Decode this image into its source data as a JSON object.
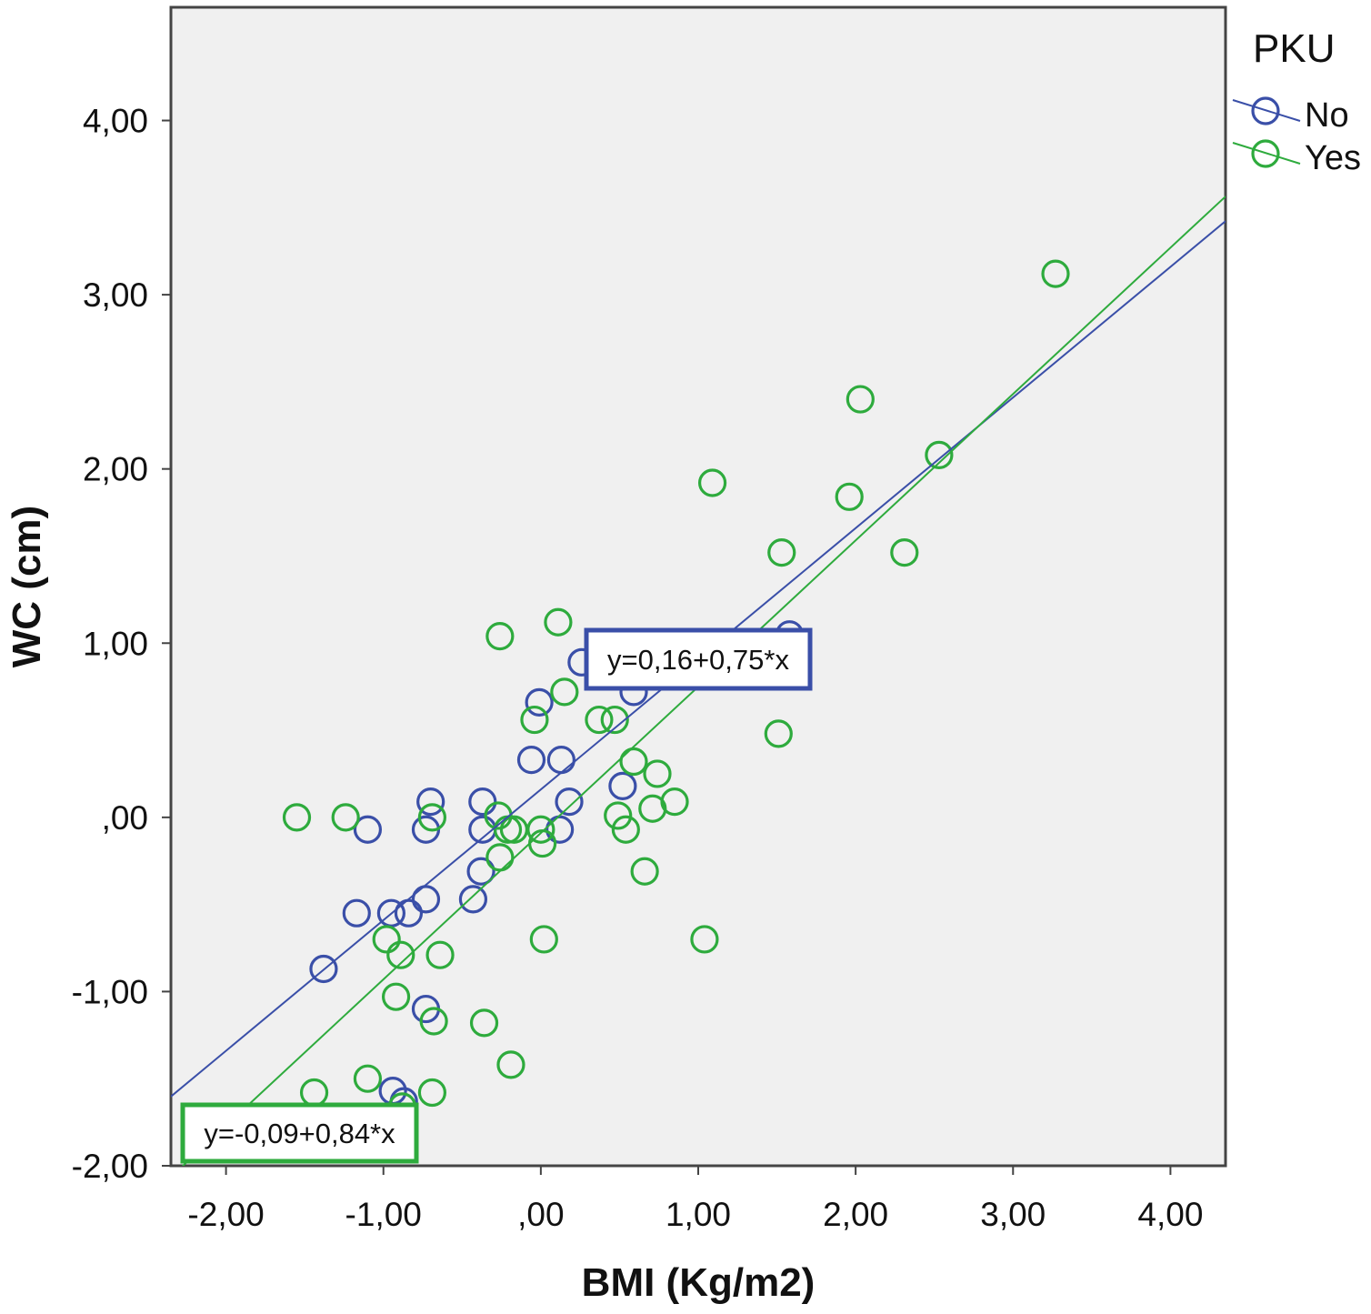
{
  "chart_data": {
    "type": "scatter",
    "title": "",
    "xlabel": "BMI (Kg/m2)",
    "ylabel": "WC (cm)",
    "xlim": [
      -2.35,
      4.35
    ],
    "ylim": [
      -2.0,
      4.65
    ],
    "xticks": [
      -2,
      -1,
      0,
      1,
      2,
      3,
      4
    ],
    "xtick_labels": [
      "-2,00",
      "-1,00",
      ",00",
      "1,00",
      "2,00",
      "3,00",
      "4,00"
    ],
    "yticks": [
      -2,
      -1,
      0,
      1,
      2,
      3,
      4
    ],
    "ytick_labels": [
      "-2,00",
      "-1,00",
      ",00",
      "1,00",
      "2,00",
      "3,00",
      "4,00"
    ],
    "grid": false,
    "background": "#f0f0f0",
    "legend": {
      "title": "PKU",
      "position": "top-right"
    },
    "series": [
      {
        "name": "No",
        "color": "#3a4fa8",
        "marker": "open-circle",
        "fit": {
          "intercept": 0.16,
          "slope": 0.75,
          "label": "y=0,16+0,75*x"
        },
        "points": [
          [
            1.58,
            1.05
          ],
          [
            0.26,
            0.89
          ],
          [
            0.59,
            0.72
          ],
          [
            -0.01,
            0.66
          ],
          [
            -0.06,
            0.33
          ],
          [
            0.13,
            0.33
          ],
          [
            0.52,
            0.18
          ],
          [
            0.18,
            0.09
          ],
          [
            -0.7,
            0.09
          ],
          [
            -0.37,
            0.09
          ],
          [
            -1.1,
            -0.07
          ],
          [
            -0.73,
            -0.07
          ],
          [
            -0.37,
            -0.07
          ],
          [
            0.12,
            -0.07
          ],
          [
            -0.38,
            -0.31
          ],
          [
            -0.73,
            -0.47
          ],
          [
            -0.43,
            -0.47
          ],
          [
            -1.17,
            -0.55
          ],
          [
            -0.95,
            -0.55
          ],
          [
            -0.84,
            -0.55
          ],
          [
            -1.38,
            -0.87
          ],
          [
            -0.73,
            -1.1
          ],
          [
            -0.94,
            -1.57
          ],
          [
            -0.87,
            -1.63
          ]
        ]
      },
      {
        "name": "Yes",
        "color": "#2eab3d",
        "marker": "open-circle",
        "fit": {
          "intercept": -0.09,
          "slope": 0.84,
          "label": "y=-0,09+0,84*x"
        },
        "points": [
          [
            3.27,
            3.12
          ],
          [
            2.03,
            2.4
          ],
          [
            2.53,
            2.08
          ],
          [
            1.09,
            1.92
          ],
          [
            1.96,
            1.84
          ],
          [
            1.53,
            1.52
          ],
          [
            2.31,
            1.52
          ],
          [
            0.11,
            1.12
          ],
          [
            -0.26,
            1.04
          ],
          [
            0.15,
            0.72
          ],
          [
            -0.04,
            0.56
          ],
          [
            0.37,
            0.56
          ],
          [
            0.47,
            0.56
          ],
          [
            1.51,
            0.48
          ],
          [
            0.59,
            0.32
          ],
          [
            0.74,
            0.25
          ],
          [
            0.85,
            0.09
          ],
          [
            0.71,
            0.05
          ],
          [
            -0.27,
            0.01
          ],
          [
            0.49,
            0.01
          ],
          [
            -1.55,
            0.0
          ],
          [
            -1.24,
            0.0
          ],
          [
            -0.69,
            0.0
          ],
          [
            -0.21,
            -0.07
          ],
          [
            -0.17,
            -0.07
          ],
          [
            0.0,
            -0.07
          ],
          [
            0.54,
            -0.07
          ],
          [
            0.01,
            -0.15
          ],
          [
            -0.26,
            -0.23
          ],
          [
            0.66,
            -0.31
          ],
          [
            0.02,
            -0.7
          ],
          [
            1.04,
            -0.7
          ],
          [
            -0.98,
            -0.7
          ],
          [
            -0.89,
            -0.79
          ],
          [
            -0.64,
            -0.79
          ],
          [
            -0.92,
            -1.03
          ],
          [
            -0.68,
            -1.17
          ],
          [
            -0.36,
            -1.18
          ],
          [
            -0.19,
            -1.42
          ],
          [
            -1.1,
            -1.5
          ],
          [
            -1.44,
            -1.58
          ],
          [
            -0.69,
            -1.58
          ],
          [
            -0.88,
            -1.66
          ]
        ]
      }
    ]
  }
}
